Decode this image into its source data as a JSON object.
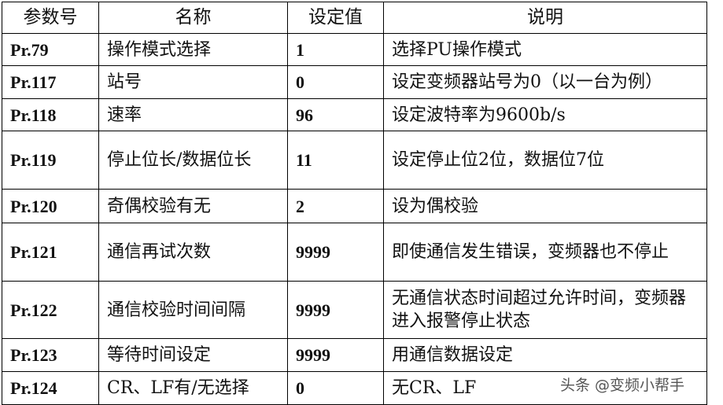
{
  "headers": [
    "参数号",
    "名称",
    "设定值",
    "说明"
  ],
  "rows": [
    [
      "Pr.79",
      "操作模式选择",
      "1",
      "选择PU操作模式"
    ],
    [
      "Pr.117",
      "站号",
      "0",
      "设定变频器站号为0（以一台为例）"
    ],
    [
      "Pr.118",
      "速率",
      "96",
      "设定波特率为9600b/s"
    ],
    [
      "Pr.119",
      "停止位长/数据位长",
      "11",
      "设定停止位2位，数据位7位"
    ],
    [
      "Pr.120",
      "奇偶校验有无",
      "2",
      "设为偶校验"
    ],
    [
      "Pr.121",
      "通信再试次数",
      "9999",
      "即使通信发生错误，变频器也不停止"
    ],
    [
      "Pr.122",
      "通信校验时间间隔",
      "9999",
      "无通信状态时间超过允许时间，变频器进入报警停止状态"
    ],
    [
      "Pr.123",
      "等待时间设定",
      "9999",
      "用通信数据设定"
    ],
    [
      "Pr.124",
      "CR、LF有/无选择",
      "0",
      "无CR、LF"
    ]
  ],
  "watermark": "头条 @变频小帮手"
}
